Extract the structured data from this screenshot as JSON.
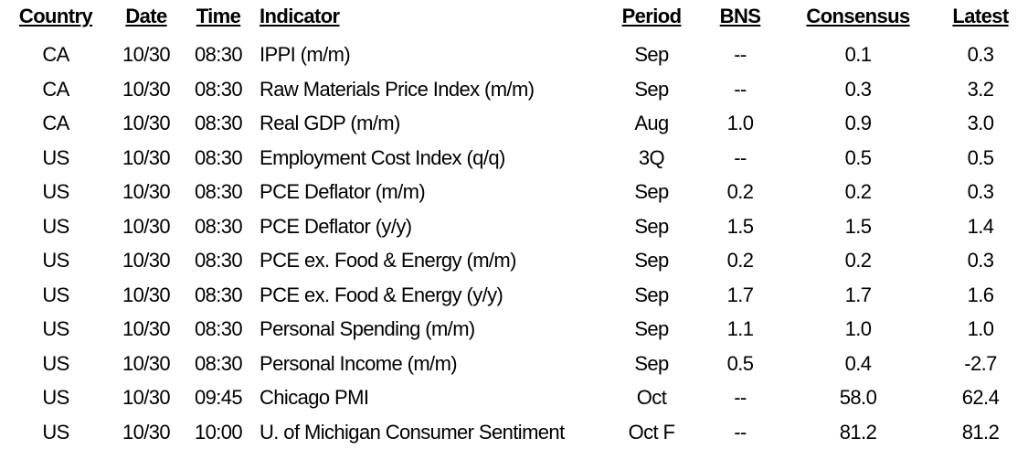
{
  "table": {
    "headers": [
      "Country",
      "Date",
      "Time",
      "Indicator",
      "Period",
      "BNS",
      "Consensus",
      "Latest"
    ],
    "rows": [
      [
        "CA",
        "10/30",
        "08:30",
        "IPPI (m/m)",
        "Sep",
        "--",
        "0.1",
        "0.3"
      ],
      [
        "CA",
        "10/30",
        "08:30",
        "Raw Materials Price Index (m/m)",
        "Sep",
        "--",
        "0.3",
        "3.2"
      ],
      [
        "CA",
        "10/30",
        "08:30",
        "Real GDP (m/m)",
        "Aug",
        "1.0",
        "0.9",
        "3.0"
      ],
      [
        "US",
        "10/30",
        "08:30",
        "Employment Cost Index (q/q)",
        "3Q",
        "--",
        "0.5",
        "0.5"
      ],
      [
        "US",
        "10/30",
        "08:30",
        "PCE Deflator (m/m)",
        "Sep",
        "0.2",
        "0.2",
        "0.3"
      ],
      [
        "US",
        "10/30",
        "08:30",
        "PCE Deflator (y/y)",
        "Sep",
        "1.5",
        "1.5",
        "1.4"
      ],
      [
        "US",
        "10/30",
        "08:30",
        "PCE ex. Food & Energy (m/m)",
        "Sep",
        "0.2",
        "0.2",
        "0.3"
      ],
      [
        "US",
        "10/30",
        "08:30",
        "PCE ex. Food & Energy (y/y)",
        "Sep",
        "1.7",
        "1.7",
        "1.6"
      ],
      [
        "US",
        "10/30",
        "08:30",
        "Personal Spending (m/m)",
        "Sep",
        "1.1",
        "1.0",
        "1.0"
      ],
      [
        "US",
        "10/30",
        "08:30",
        "Personal Income (m/m)",
        "Sep",
        "0.5",
        "0.4",
        "-2.7"
      ],
      [
        "US",
        "10/30",
        "09:45",
        "Chicago PMI",
        "Oct",
        "--",
        "58.0",
        "62.4"
      ],
      [
        "US",
        "10/30",
        "10:00",
        "U. of Michigan Consumer Sentiment",
        "Oct F",
        "--",
        "81.2",
        "81.2"
      ]
    ]
  }
}
